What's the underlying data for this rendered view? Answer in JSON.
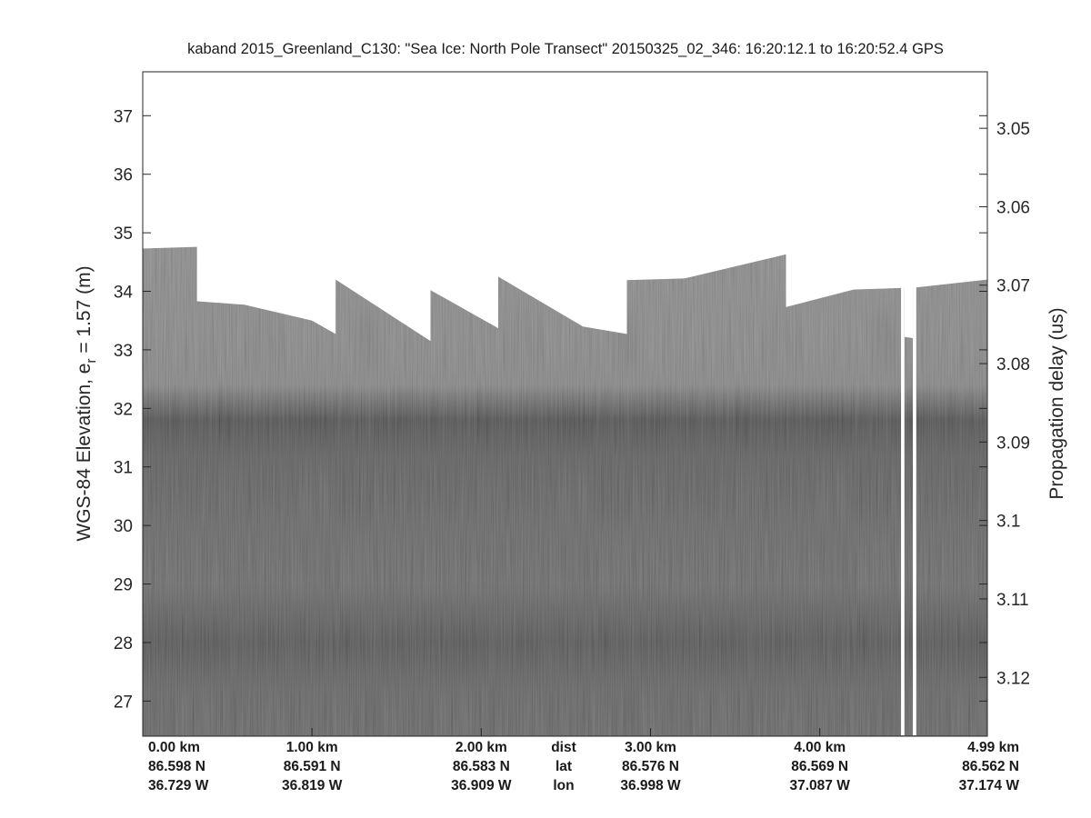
{
  "chart_data": {
    "type": "heatmap",
    "title": "kaband 2015_Greenland_C130: \"Sea Ice: North Pole Transect\"  20150325_02_346: 16:20:12.1 to 16:20:52.4 GPS",
    "ylabel_left_main": "WGS-84 Elevation, e",
    "ylabel_left_sub": "r",
    "ylabel_left_tail": " = 1.57 (m)",
    "ylabel_right": "Propagation delay (us)",
    "colormap": "gray",
    "x_range_km": [
      0,
      4.99
    ],
    "y_left_range_m": [
      26.4,
      37.75
    ],
    "y_right_range_us": [
      3.0428,
      3.1275
    ],
    "y_left_ticks": [
      "27",
      "28",
      "29",
      "30",
      "31",
      "32",
      "33",
      "34",
      "35",
      "36",
      "37"
    ],
    "y_right_ticks": [
      "3.05",
      "3.06",
      "3.07",
      "3.08",
      "3.09",
      "3.1",
      "3.11",
      "3.12"
    ],
    "surface_top_elevation_m": [
      {
        "x": 0.0,
        "y": 34.73
      },
      {
        "x": 0.32,
        "y": 34.76
      },
      {
        "x": 0.32,
        "y": 33.83
      },
      {
        "x": 0.6,
        "y": 33.77
      },
      {
        "x": 1.0,
        "y": 33.5
      },
      {
        "x": 1.14,
        "y": 33.27
      },
      {
        "x": 1.14,
        "y": 34.2
      },
      {
        "x": 1.7,
        "y": 33.15
      },
      {
        "x": 1.7,
        "y": 34.02
      },
      {
        "x": 2.1,
        "y": 33.37
      },
      {
        "x": 2.1,
        "y": 34.25
      },
      {
        "x": 2.6,
        "y": 33.4
      },
      {
        "x": 2.86,
        "y": 33.27
      },
      {
        "x": 2.86,
        "y": 34.19
      },
      {
        "x": 3.2,
        "y": 34.22
      },
      {
        "x": 3.8,
        "y": 34.63
      },
      {
        "x": 3.8,
        "y": 33.73
      },
      {
        "x": 4.2,
        "y": 34.03
      },
      {
        "x": 4.5,
        "y": 34.06
      },
      {
        "x": 4.5,
        "y": 33.22
      },
      {
        "x": 4.55,
        "y": 33.2
      },
      {
        "x": 4.55,
        "y": 34.06
      },
      {
        "x": 4.99,
        "y": 34.2
      }
    ],
    "surface_gaps_km": [
      [
        4.48,
        4.5
      ],
      [
        4.55,
        4.57
      ]
    ],
    "dark_layers_elevation_m": [
      {
        "center": 31.8,
        "strength": 0.55
      },
      {
        "center": 28.0,
        "strength": 0.3
      }
    ],
    "footer": {
      "row_labels": [
        "dist",
        "lat",
        "lon"
      ],
      "columns": [
        {
          "dist": "0.00 km",
          "lat": "86.598 N",
          "lon": "36.729 W"
        },
        {
          "dist": "1.00 km",
          "lat": "86.591 N",
          "lon": "36.819 W"
        },
        {
          "dist": "2.00 km",
          "lat": "86.583 N",
          "lon": "36.909 W"
        },
        {
          "dist": "3.00 km",
          "lat": "86.576 N",
          "lon": "36.998 W"
        },
        {
          "dist": "4.00 km",
          "lat": "86.569 N",
          "lon": "37.087 W"
        },
        {
          "dist": "4.99 km",
          "lat": "86.562 N",
          "lon": "37.174 W"
        }
      ]
    }
  }
}
